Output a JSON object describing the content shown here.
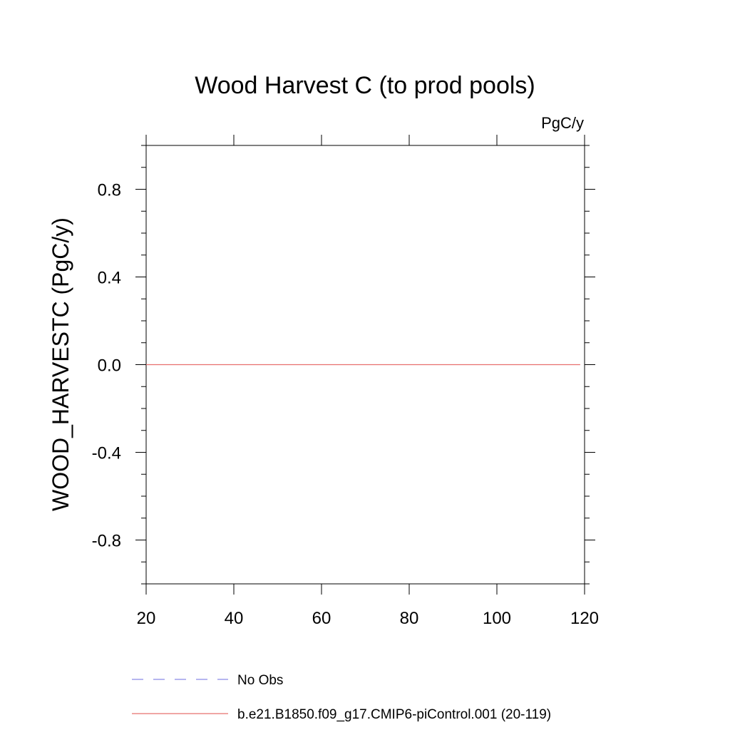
{
  "chart_data": {
    "type": "line",
    "title": "Wood Harvest C (to prod pools)",
    "units": "PgC/y",
    "ylabel": "WOOD_HARVESTC  (PgC/y)",
    "xlabel": "",
    "xlim": [
      20,
      120
    ],
    "ylim": [
      -1.0,
      1.0
    ],
    "x_ticks": [
      20,
      40,
      60,
      80,
      100,
      120
    ],
    "x_tick_labels": [
      "20",
      "40",
      "60",
      "80",
      "100",
      "120"
    ],
    "y_ticks": [
      0.8,
      0.4,
      0.0,
      -0.4,
      -0.8
    ],
    "y_tick_labels": [
      "0.8",
      "0.4",
      "0.0",
      "-0.4",
      "-0.8"
    ],
    "grid": false,
    "legend_position": "bottom",
    "series": [
      {
        "name": "No Obs",
        "color": "#8a8ae6",
        "dash": "dashed",
        "x": [],
        "y": []
      },
      {
        "name": "b.e21.B1850.f09_g17.CMIP6-piControl.001 (20-119)",
        "color": "#e8706e",
        "dash": "solid",
        "x": [
          20,
          119
        ],
        "y": [
          0.0,
          0.0
        ]
      }
    ]
  }
}
